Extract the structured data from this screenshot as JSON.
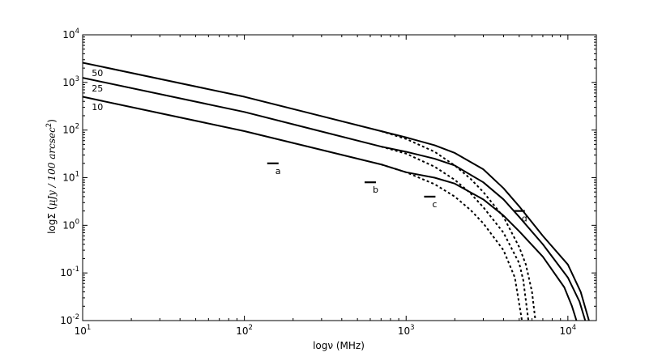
{
  "chart_data": {
    "type": "line",
    "xlabel": "logν (MHz)",
    "ylabel_prefix": "logΣ (",
    "ylabel_math": "μJy / 100 arcsec",
    "ylabel_exp": "2",
    "ylabel_suffix": ")",
    "xscale": "log",
    "yscale": "log",
    "xlim": [
      10,
      15000
    ],
    "ylim": [
      0.01,
      10000
    ],
    "x_ticks": [
      {
        "base": "10",
        "exp": "1",
        "value": 10
      },
      {
        "base": "10",
        "exp": "2",
        "value": 100
      },
      {
        "base": "10",
        "exp": "3",
        "value": 1000
      },
      {
        "base": "10",
        "exp": "4",
        "value": 10000
      }
    ],
    "y_ticks": [
      {
        "base": "10",
        "exp": "-2",
        "value": 0.01
      },
      {
        "base": "10",
        "exp": "-1",
        "value": 0.1
      },
      {
        "base": "10",
        "exp": "0",
        "value": 1
      },
      {
        "base": "10",
        "exp": "1",
        "value": 10
      },
      {
        "base": "10",
        "exp": "2",
        "value": 100
      },
      {
        "base": "10",
        "exp": "3",
        "value": 1000
      },
      {
        "base": "10",
        "exp": "4",
        "value": 10000
      }
    ],
    "grid": false,
    "series": [
      {
        "name": "50",
        "style": "solid",
        "x": [
          10,
          100,
          700,
          1000,
          1500,
          2000,
          3000,
          4000,
          5000,
          7000,
          10000,
          12000,
          13500
        ],
        "y": [
          2600,
          500,
          95,
          70,
          48,
          33,
          15,
          6,
          2.5,
          0.6,
          0.15,
          0.04,
          0.01
        ]
      },
      {
        "name": "50",
        "style": "dashed",
        "x": [
          700,
          1000,
          1500,
          2000,
          2500,
          3000,
          4000,
          5000,
          5500,
          6000,
          6300
        ],
        "y": [
          95,
          65,
          35,
          18,
          9.5,
          5,
          1.5,
          0.35,
          0.15,
          0.04,
          0.01
        ]
      },
      {
        "name": "25",
        "style": "solid",
        "x": [
          10,
          100,
          700,
          1000,
          1500,
          2000,
          3000,
          4000,
          5000,
          7000,
          10000,
          11800,
          12800
        ],
        "y": [
          1250,
          240,
          45,
          35,
          25,
          18,
          8,
          3.5,
          1.5,
          0.4,
          0.08,
          0.025,
          0.01
        ]
      },
      {
        "name": "25",
        "style": "dashed",
        "x": [
          700,
          1000,
          1500,
          2000,
          2500,
          3000,
          4000,
          5000,
          5300,
          5700
        ],
        "y": [
          45,
          32,
          17,
          9,
          4.7,
          2.4,
          0.7,
          0.16,
          0.07,
          0.01
        ]
      },
      {
        "name": "10",
        "style": "solid",
        "x": [
          10,
          100,
          700,
          1000,
          1500,
          2000,
          3000,
          4000,
          5000,
          7000,
          9500,
          10600,
          11300
        ],
        "y": [
          500,
          95,
          19,
          13,
          10,
          7.5,
          3.5,
          1.6,
          0.75,
          0.22,
          0.05,
          0.02,
          0.01
        ]
      },
      {
        "name": "10",
        "style": "dashed",
        "x": [
          700,
          1000,
          1500,
          2000,
          2500,
          3000,
          4000,
          4700,
          5200
        ],
        "y": [
          19,
          13,
          7.3,
          4,
          2.1,
          1.1,
          0.3,
          0.08,
          0.01
        ]
      }
    ],
    "series_labels": [
      {
        "text": "50",
        "x": 11,
        "y": 1600
      },
      {
        "text": "25",
        "x": 11,
        "y": 760
      },
      {
        "text": "10",
        "x": 11,
        "y": 310
      }
    ],
    "markers": [
      {
        "label": "a",
        "x": 150,
        "y": 20
      },
      {
        "label": "b",
        "x": 600,
        "y": 8
      },
      {
        "label": "c",
        "x": 1400,
        "y": 4
      },
      {
        "label": "d",
        "x": 5000,
        "y": 2
      }
    ]
  }
}
